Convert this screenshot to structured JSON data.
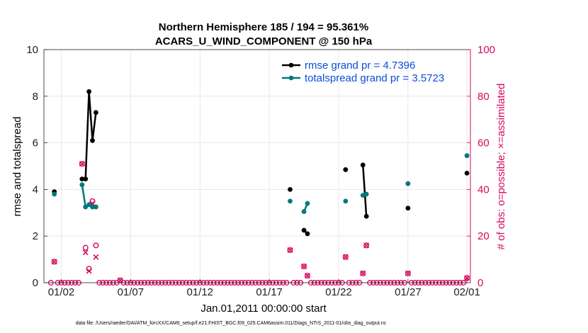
{
  "chart_data": {
    "type": "line",
    "title": "Northern Hemisphere 185 / 194 = 95.361%",
    "subtitle": "ACARS_U_WIND_COMPONENT @ 150 hPa",
    "xlabel": "Jan.01,2011 00:00:00 start",
    "ylabel": "rmse and totalspread",
    "y2label": "# of obs: o=possible; ×=assimilated",
    "footnote": "data file: /Users/raeder/DAI/ATM_forcXX/CAM6_setup/f.e21.FHIST_BGC.f09_025.CAM6assim.011/Diags_NTrS_2011-01/obs_diag_output.nc",
    "xlim": [
      0.5,
      31.25
    ],
    "ylim": [
      0,
      10
    ],
    "y2lim": [
      0,
      100
    ],
    "yticks": [
      0,
      2,
      4,
      6,
      8,
      10
    ],
    "y2ticks": [
      0,
      20,
      40,
      60,
      80,
      100
    ],
    "xticks": [
      {
        "x": 1.75,
        "label": "01/02"
      },
      {
        "x": 6.75,
        "label": "01/07"
      },
      {
        "x": 11.75,
        "label": "01/12"
      },
      {
        "x": 16.75,
        "label": "01/17"
      },
      {
        "x": 21.75,
        "label": "01/22"
      },
      {
        "x": 26.75,
        "label": "01/27"
      },
      {
        "x": 31.0,
        "label": "02/01"
      }
    ],
    "grid": true,
    "legend_position": "top-right",
    "colors": {
      "rmse": "#000000",
      "totalspread": "#00797a",
      "obs": "#d6085f",
      "legend_text": "#0a4fd6",
      "right_axis": "#d6085f"
    },
    "series": [
      {
        "name": "rmse grand pr = 4.7396",
        "color": "#000000",
        "points": [
          [
            1.25,
            3.9
          ],
          [
            3.25,
            4.45
          ],
          [
            3.5,
            4.45
          ],
          [
            3.75,
            8.2
          ],
          [
            4.0,
            6.1
          ],
          [
            4.25,
            7.3
          ],
          [
            18.25,
            4.0
          ],
          [
            19.25,
            2.25
          ],
          [
            19.5,
            2.1
          ],
          [
            22.25,
            4.85
          ],
          [
            23.5,
            5.05
          ],
          [
            23.75,
            2.85
          ],
          [
            26.75,
            3.2
          ],
          [
            31.0,
            4.7
          ]
        ]
      },
      {
        "name": "totalspread grand pr = 3.5723",
        "color": "#00797a",
        "points": [
          [
            1.25,
            3.8
          ],
          [
            3.25,
            4.2
          ],
          [
            3.5,
            3.25
          ],
          [
            3.75,
            3.35
          ],
          [
            4.0,
            3.25
          ],
          [
            4.25,
            3.25
          ],
          [
            18.25,
            3.5
          ],
          [
            19.25,
            3.05
          ],
          [
            19.5,
            3.4
          ],
          [
            22.25,
            3.5
          ],
          [
            23.5,
            3.75
          ],
          [
            23.75,
            3.8
          ],
          [
            26.75,
            4.25
          ],
          [
            31.0,
            5.45
          ]
        ]
      }
    ],
    "obs_possible": [
      [
        1.25,
        9
      ],
      [
        3.25,
        51
      ],
      [
        3.5,
        15
      ],
      [
        3.75,
        6
      ],
      [
        4.0,
        35
      ],
      [
        4.25,
        16
      ],
      [
        6.0,
        1
      ],
      [
        18.25,
        14
      ],
      [
        19.25,
        7
      ],
      [
        19.5,
        3
      ],
      [
        22.25,
        11
      ],
      [
        23.5,
        4
      ],
      [
        23.75,
        16
      ],
      [
        26.75,
        4
      ],
      [
        31.0,
        2
      ]
    ],
    "obs_assimilated": [
      [
        1.25,
        9
      ],
      [
        3.25,
        51
      ],
      [
        3.5,
        13
      ],
      [
        3.75,
        5
      ],
      [
        4.0,
        34
      ],
      [
        4.25,
        11
      ],
      [
        6.0,
        1
      ],
      [
        18.25,
        14
      ],
      [
        19.25,
        7
      ],
      [
        19.5,
        3
      ],
      [
        22.25,
        11
      ],
      [
        23.5,
        4
      ],
      [
        23.75,
        16
      ],
      [
        26.75,
        4
      ],
      [
        31.0,
        2
      ]
    ]
  }
}
